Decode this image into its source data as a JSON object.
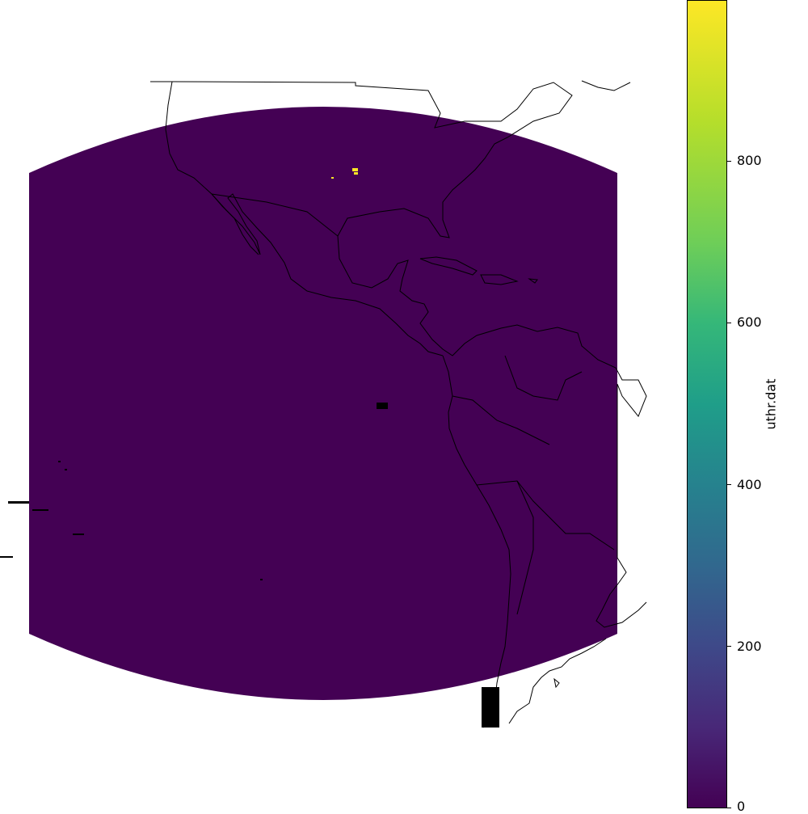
{
  "map": {
    "projection_extent": "Americas (Mexico, Central America, Caribbean, South America)",
    "field_fill_color": "#440154",
    "highlight_color": "#fde725",
    "coastline_color": "#000000"
  },
  "colorbar": {
    "label": "uthr.dat",
    "colormap": "viridis",
    "vmin": 0,
    "vmax": 980,
    "ticks": [
      "0",
      "200",
      "400",
      "600",
      "800"
    ]
  },
  "chart_data": {
    "type": "heatmap",
    "title": "",
    "colorbar_label": "uthr.dat",
    "value_range": [
      0,
      980
    ],
    "background_value": 0,
    "hotspots": [
      {
        "region": "central United States",
        "approx_value": 980
      }
    ]
  }
}
